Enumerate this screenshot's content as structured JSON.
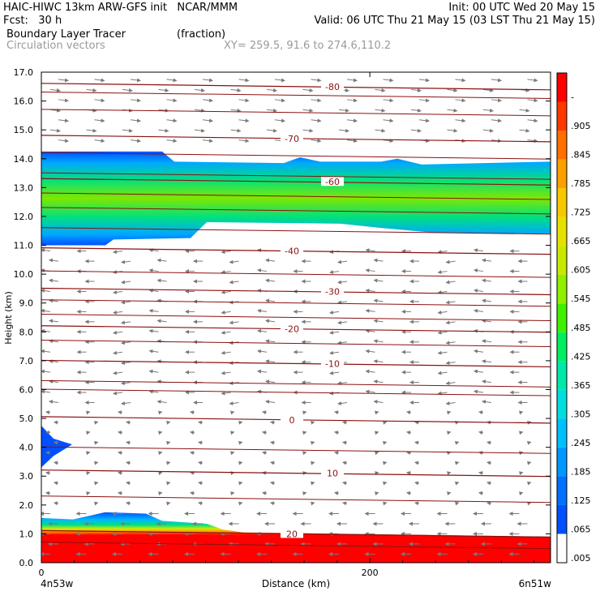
{
  "header": {
    "line1_left": "HAIC-HIWC 13km ARW-GFS init   NCAR/MMM",
    "line1_right": "Init: 00 UTC Wed 20 May 15",
    "line2_left": "Fcst:   30 h",
    "line2_right": "Valid: 06 UTC Thu 21 May 15 (03 LST Thu 21 May 15)",
    "line3_left": "Boundary Layer Tracer",
    "line3_unit": "(fraction)",
    "line4_left": "Circulation vectors",
    "line4_right": "XY= 259.5, 91.6 to 274.6,110.2"
  },
  "chart_data": {
    "type": "heatmap",
    "ylabel": "Height (km)",
    "xlabel": "Distance (km)",
    "ylim": [
      0,
      17
    ],
    "yticks": [
      "0.0",
      "1.0",
      "2.0",
      "3.0",
      "4.0",
      "5.0",
      "6.0",
      "7.0",
      "8.0",
      "9.0",
      "10.0",
      "11.0",
      "12.0",
      "13.0",
      "14.0",
      "15.0",
      "16.0",
      "17.0"
    ],
    "xticks": [
      {
        "value": 0,
        "label": "0"
      },
      {
        "value": 200,
        "label": "200"
      }
    ],
    "x_end_labels": {
      "left": "4n53w",
      "right": "6n51w"
    },
    "xlim": [
      0,
      310
    ],
    "colorbar_labels": [
      ".005",
      ".065",
      ".125",
      ".185",
      ".245",
      ".305",
      ".365",
      ".425",
      ".485",
      ".545",
      ".605",
      ".665",
      ".725",
      ".785",
      ".845",
      ".905",
      "-"
    ],
    "colorbar_colors": [
      "#ffffff",
      "#0050ff",
      "#0070ff",
      "#0098ff",
      "#00bfff",
      "#00dddd",
      "#00e8a8",
      "#00ee60",
      "#40f000",
      "#90ee00",
      "#c8e800",
      "#e6e000",
      "#f5c800",
      "#fba000",
      "#ff7000",
      "#ff3800",
      "#ff0000"
    ],
    "isotherms": [
      {
        "label": "-80",
        "km": 16.5
      },
      {
        "label": "-70",
        "km": 14.7
      },
      {
        "label": "-60",
        "km": 13.2
      },
      {
        "label": "-40",
        "km": 10.8
      },
      {
        "label": "-30",
        "km": 9.4
      },
      {
        "label": "-20",
        "km": 8.1
      },
      {
        "label": "-10",
        "km": 6.9
      },
      {
        "label": "0",
        "km": 4.95
      },
      {
        "label": "10",
        "km": 3.1
      },
      {
        "label": "20",
        "km": 1.0
      }
    ],
    "upper_tracer_layer": {
      "bottom_km": [
        11.0,
        11.8,
        11.4
      ],
      "top_km": [
        14.2,
        13.8,
        13.9
      ],
      "core_value": 0.4
    },
    "low_tracer_layer": {
      "top_km": 1.5,
      "core_value": 1.0
    }
  }
}
